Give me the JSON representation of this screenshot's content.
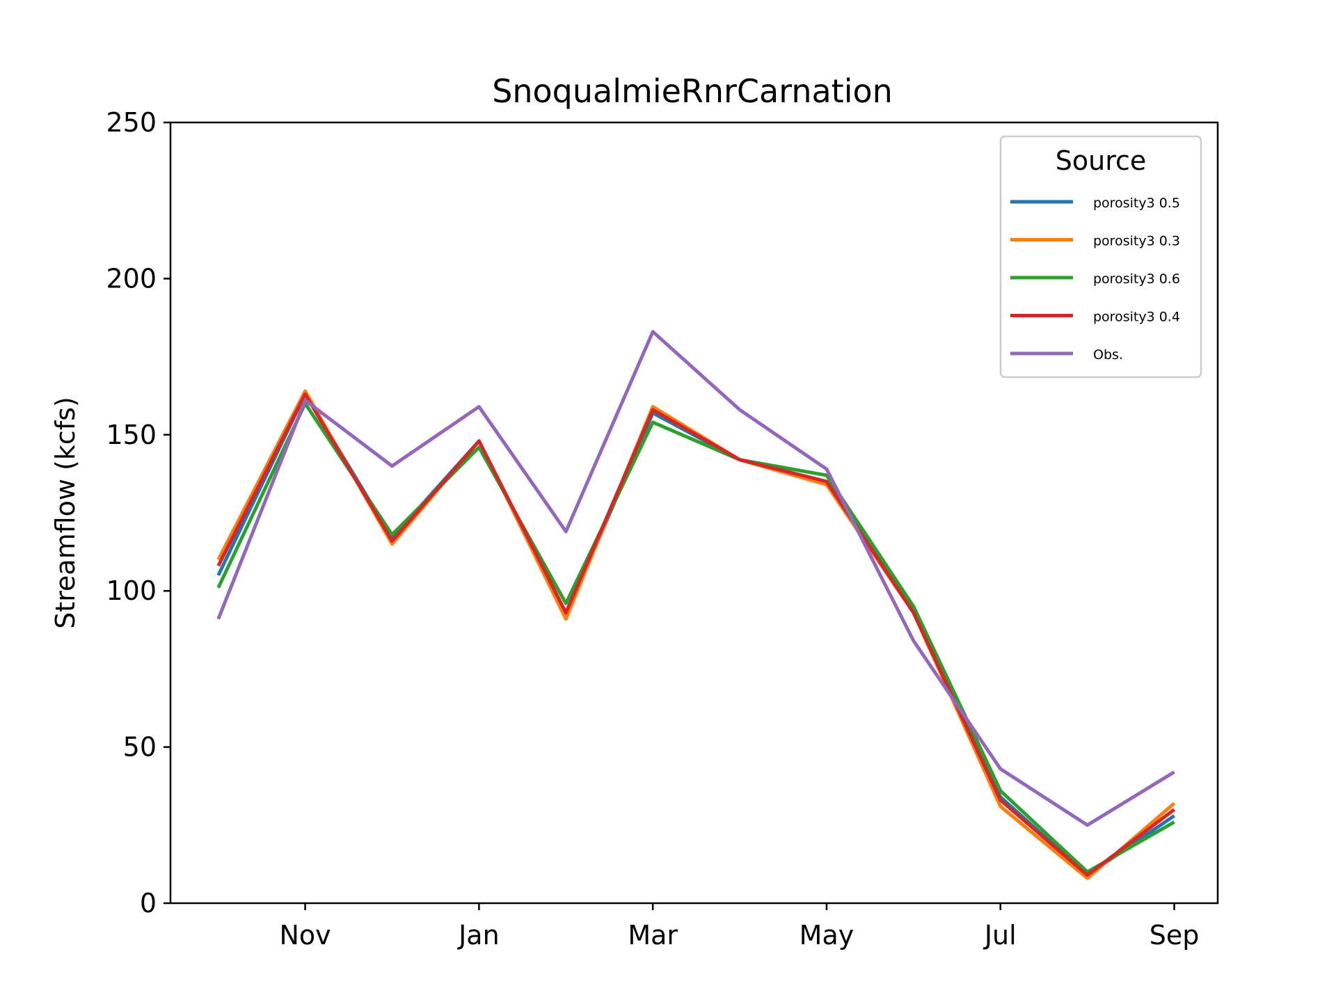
{
  "chart_data": {
    "type": "line",
    "title": "SnoqualmieRnrCarnation",
    "xlabel": "",
    "ylabel": "Streamflow (kcfs)",
    "ylim": [
      0,
      250
    ],
    "yticks": [
      0,
      50,
      100,
      150,
      200,
      250
    ],
    "ytick_labels": [
      "0",
      "50",
      "100",
      "150",
      "200",
      "250"
    ],
    "x_month_index": [
      0,
      1,
      2,
      3,
      4,
      5,
      6,
      7,
      8,
      9,
      10,
      11
    ],
    "xlim": [
      -0.55,
      11.5
    ],
    "xticks": [
      1,
      3,
      5,
      7,
      9,
      11
    ],
    "xtick_labels": [
      "Nov",
      "Jan",
      "Mar",
      "May",
      "Jul",
      "Sep"
    ],
    "grid": false,
    "legend": {
      "title": "Source",
      "placement": "top-right"
    },
    "series": [
      {
        "name": "porosity3 0.5",
        "color": "#1f77b4",
        "values": [
          105,
          163,
          117,
          148,
          92,
          157,
          142,
          135,
          94,
          34,
          9,
          28
        ]
      },
      {
        "name": "porosity3 0.3",
        "color": "#ff7f0e",
        "values": [
          110,
          164,
          115,
          148,
          91,
          159,
          142,
          134,
          93,
          31,
          8,
          32
        ]
      },
      {
        "name": "porosity3 0.6",
        "color": "#2ca02c",
        "values": [
          101,
          160,
          118,
          146,
          96,
          154,
          142,
          137,
          95,
          36,
          10,
          26
        ]
      },
      {
        "name": "porosity3 0.4",
        "color": "#d62728",
        "values": [
          108,
          163,
          116,
          148,
          93,
          158,
          142,
          135,
          93,
          33,
          9,
          30
        ]
      },
      {
        "name": "Obs.",
        "color": "#9467bd",
        "values": [
          91,
          161,
          140,
          159,
          119,
          183,
          158,
          139,
          84,
          43,
          25,
          42
        ]
      }
    ]
  }
}
